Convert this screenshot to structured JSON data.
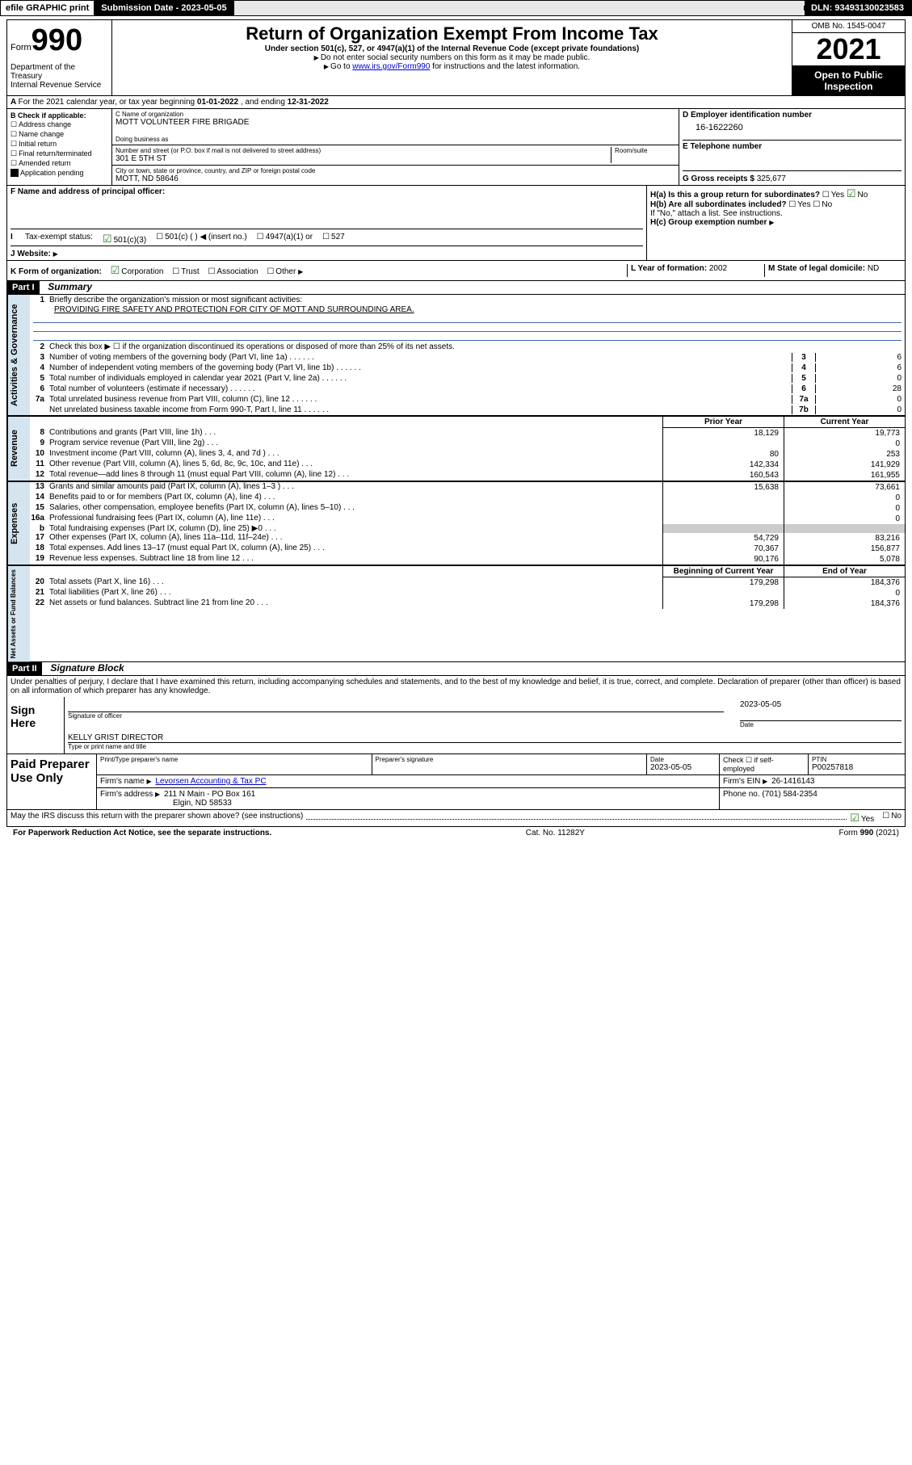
{
  "header": {
    "efile": "efile GRAPHIC print",
    "subdate_label": "Submission Date - ",
    "subdate": "2023-05-05",
    "dln_label": "DLN: ",
    "dln": "93493130023583"
  },
  "titlebox": {
    "form_word": "Form",
    "form_no": "990",
    "dept": "Department of the Treasury\nInternal Revenue Service",
    "title": "Return of Organization Exempt From Income Tax",
    "sub": "Under section 501(c), 527, or 4947(a)(1) of the Internal Revenue Code (except private foundations)",
    "nossn": "Do not enter social security numbers on this form as it may be made public.",
    "goto_pre": "Go to ",
    "goto_link": "www.irs.gov/Form990",
    "goto_post": " for instructions and the latest information.",
    "omb": "OMB No. 1545-0047",
    "year": "2021",
    "open": "Open to Public Inspection"
  },
  "A": {
    "text": "For the 2021 calendar year, or tax year beginning ",
    "begin": "01-01-2022",
    "mid": " , and ending ",
    "end": "12-31-2022"
  },
  "B": {
    "title": "B Check if applicable:",
    "items": [
      "Address change",
      "Name change",
      "Initial return",
      "Final return/terminated",
      "Amended return",
      "Application pending"
    ]
  },
  "C": {
    "name_label": "C Name of organization",
    "name": "MOTT VOLUNTEER FIRE BRIGADE",
    "dba_label": "Doing business as",
    "street_label": "Number and street (or P.O. box if mail is not delivered to street address)",
    "room_label": "Room/suite",
    "street": "301 E 5TH ST",
    "city_label": "City or town, state or province, country, and ZIP or foreign postal code",
    "city": "MOTT, ND  58646"
  },
  "D": {
    "label": "D Employer identification number",
    "value": "16-1622260"
  },
  "E": {
    "label": "E Telephone number",
    "value": ""
  },
  "G": {
    "label": "G Gross receipts $ ",
    "value": "325,677"
  },
  "F": {
    "label": "F  Name and address of principal officer:"
  },
  "H": {
    "a_label": "H(a)  Is this a group return for subordinates?",
    "a_yes": "Yes",
    "a_no": "No",
    "b_label": "H(b)  Are all subordinates included?",
    "b_yes": "Yes",
    "b_no": "No",
    "b_note": "If \"No,\" attach a list. See instructions.",
    "c_label": "H(c)  Group exemption number "
  },
  "I": {
    "label": "Tax-exempt status:",
    "opts": [
      "501(c)(3)",
      "501(c) (   ) ◀ (insert no.)",
      "4947(a)(1) or",
      "527"
    ]
  },
  "J": {
    "label": "J   Website: "
  },
  "K": {
    "label": "K Form of organization:",
    "opts": [
      "Corporation",
      "Trust",
      "Association",
      "Other"
    ],
    "L_label": "L Year of formation: ",
    "L_val": "2002",
    "M_label": "M State of legal domicile: ",
    "M_val": "ND"
  },
  "partI": {
    "header": "Part I",
    "title": "Summary",
    "q1": "Briefly describe the organization's mission or most significant activities:",
    "mission": "PROVIDING FIRE SAFETY AND PROTECTION FOR CITY OF MOTT AND SURROUNDING AREA.",
    "q2": "Check this box ▶ ☐  if the organization discontinued its operations or disposed of more than 25% of its net assets.",
    "lines_gov": [
      {
        "n": "3",
        "t": "Number of voting members of the governing body (Part VI, line 1a)",
        "box": "3",
        "v": "6"
      },
      {
        "n": "4",
        "t": "Number of independent voting members of the governing body (Part VI, line 1b)",
        "box": "4",
        "v": "6"
      },
      {
        "n": "5",
        "t": "Total number of individuals employed in calendar year 2021 (Part V, line 2a)",
        "box": "5",
        "v": "0"
      },
      {
        "n": "6",
        "t": "Total number of volunteers (estimate if necessary)",
        "box": "6",
        "v": "28"
      },
      {
        "n": "7a",
        "t": "Total unrelated business revenue from Part VIII, column (C), line 12",
        "box": "7a",
        "v": "0"
      },
      {
        "n": "",
        "t": "Net unrelated business taxable income from Form 990-T, Part I, line 11",
        "box": "7b",
        "v": "0"
      }
    ],
    "col_headers": [
      "Prior Year",
      "Current Year"
    ],
    "rev_lines": [
      {
        "n": "8",
        "t": "Contributions and grants (Part VIII, line 1h)",
        "c1": "18,129",
        "c2": "19,773"
      },
      {
        "n": "9",
        "t": "Program service revenue (Part VIII, line 2g)",
        "c1": "",
        "c2": "0"
      },
      {
        "n": "10",
        "t": "Investment income (Part VIII, column (A), lines 3, 4, and 7d )",
        "c1": "80",
        "c2": "253"
      },
      {
        "n": "11",
        "t": "Other revenue (Part VIII, column (A), lines 5, 6d, 8c, 9c, 10c, and 11e)",
        "c1": "142,334",
        "c2": "141,929"
      },
      {
        "n": "12",
        "t": "Total revenue—add lines 8 through 11 (must equal Part VIII, column (A), line 12)",
        "c1": "160,543",
        "c2": "161,955"
      }
    ],
    "exp_lines": [
      {
        "n": "13",
        "t": "Grants and similar amounts paid (Part IX, column (A), lines 1–3 )",
        "c1": "15,638",
        "c2": "73,661"
      },
      {
        "n": "14",
        "t": "Benefits paid to or for members (Part IX, column (A), line 4)",
        "c1": "",
        "c2": "0"
      },
      {
        "n": "15",
        "t": "Salaries, other compensation, employee benefits (Part IX, column (A), lines 5–10)",
        "c1": "",
        "c2": "0"
      },
      {
        "n": "16a",
        "t": "Professional fundraising fees (Part IX, column (A), line 11e)",
        "c1": "",
        "c2": "0"
      },
      {
        "n": "b",
        "t": "Total fundraising expenses (Part IX, column (D), line 25) ▶0",
        "c1": "GRAY",
        "c2": "GRAY"
      },
      {
        "n": "17",
        "t": "Other expenses (Part IX, column (A), lines 11a–11d, 11f–24e)",
        "c1": "54,729",
        "c2": "83,216"
      },
      {
        "n": "18",
        "t": "Total expenses. Add lines 13–17 (must equal Part IX, column (A), line 25)",
        "c1": "70,367",
        "c2": "156,877"
      },
      {
        "n": "19",
        "t": "Revenue less expenses. Subtract line 18 from line 12",
        "c1": "90,176",
        "c2": "5,078"
      }
    ],
    "net_headers": [
      "Beginning of Current Year",
      "End of Year"
    ],
    "net_lines": [
      {
        "n": "20",
        "t": "Total assets (Part X, line 16)",
        "c1": "179,298",
        "c2": "184,376"
      },
      {
        "n": "21",
        "t": "Total liabilities (Part X, line 26)",
        "c1": "",
        "c2": "0"
      },
      {
        "n": "22",
        "t": "Net assets or fund balances. Subtract line 21 from line 20",
        "c1": "179,298",
        "c2": "184,376"
      }
    ],
    "vert_gov": "Activities & Governance",
    "vert_rev": "Revenue",
    "vert_exp": "Expenses",
    "vert_net": "Net Assets or Fund Balances"
  },
  "partII": {
    "header": "Part II",
    "title": "Signature Block",
    "jurat": "Under penalties of perjury, I declare that I have examined this return, including accompanying schedules and statements, and to the best of my knowledge and belief, it is true, correct, and complete. Declaration of preparer (other than officer) is based on all information of which preparer has any knowledge.",
    "sign_here": "Sign Here",
    "sig_officer": "Signature of officer",
    "sig_date": "2023-05-05",
    "date_label": "Date",
    "name_title": "KELLY GRIST  DIRECTOR",
    "name_title_label": "Type or print name and title",
    "paid_label": "Paid Preparer Use Only",
    "prep_name_label": "Print/Type preparer's name",
    "prep_sig_label": "Preparer's signature",
    "prep_date_label": "Date",
    "prep_date": "2023-05-05",
    "check_if": "Check ☐ if self-employed",
    "ptin_label": "PTIN",
    "ptin": "P00257818",
    "firm_name_label": "Firm's name    ",
    "firm_name": "Levorsen Accounting & Tax PC",
    "firm_ein_label": "Firm's EIN ",
    "firm_ein": "26-1416143",
    "firm_addr_label": "Firm's address ",
    "firm_addr": "211 N Main - PO Box 161",
    "firm_city": "Elgin, ND  58533",
    "phone_label": "Phone no. ",
    "phone": "(701) 584-2354",
    "discuss": "May the IRS discuss this return with the preparer shown above? (see instructions)",
    "discuss_yes": "Yes",
    "discuss_no": "No"
  },
  "footer": {
    "left": "For Paperwork Reduction Act Notice, see the separate instructions.",
    "mid": "Cat. No. 11282Y",
    "right": "Form 990 (2021)"
  }
}
